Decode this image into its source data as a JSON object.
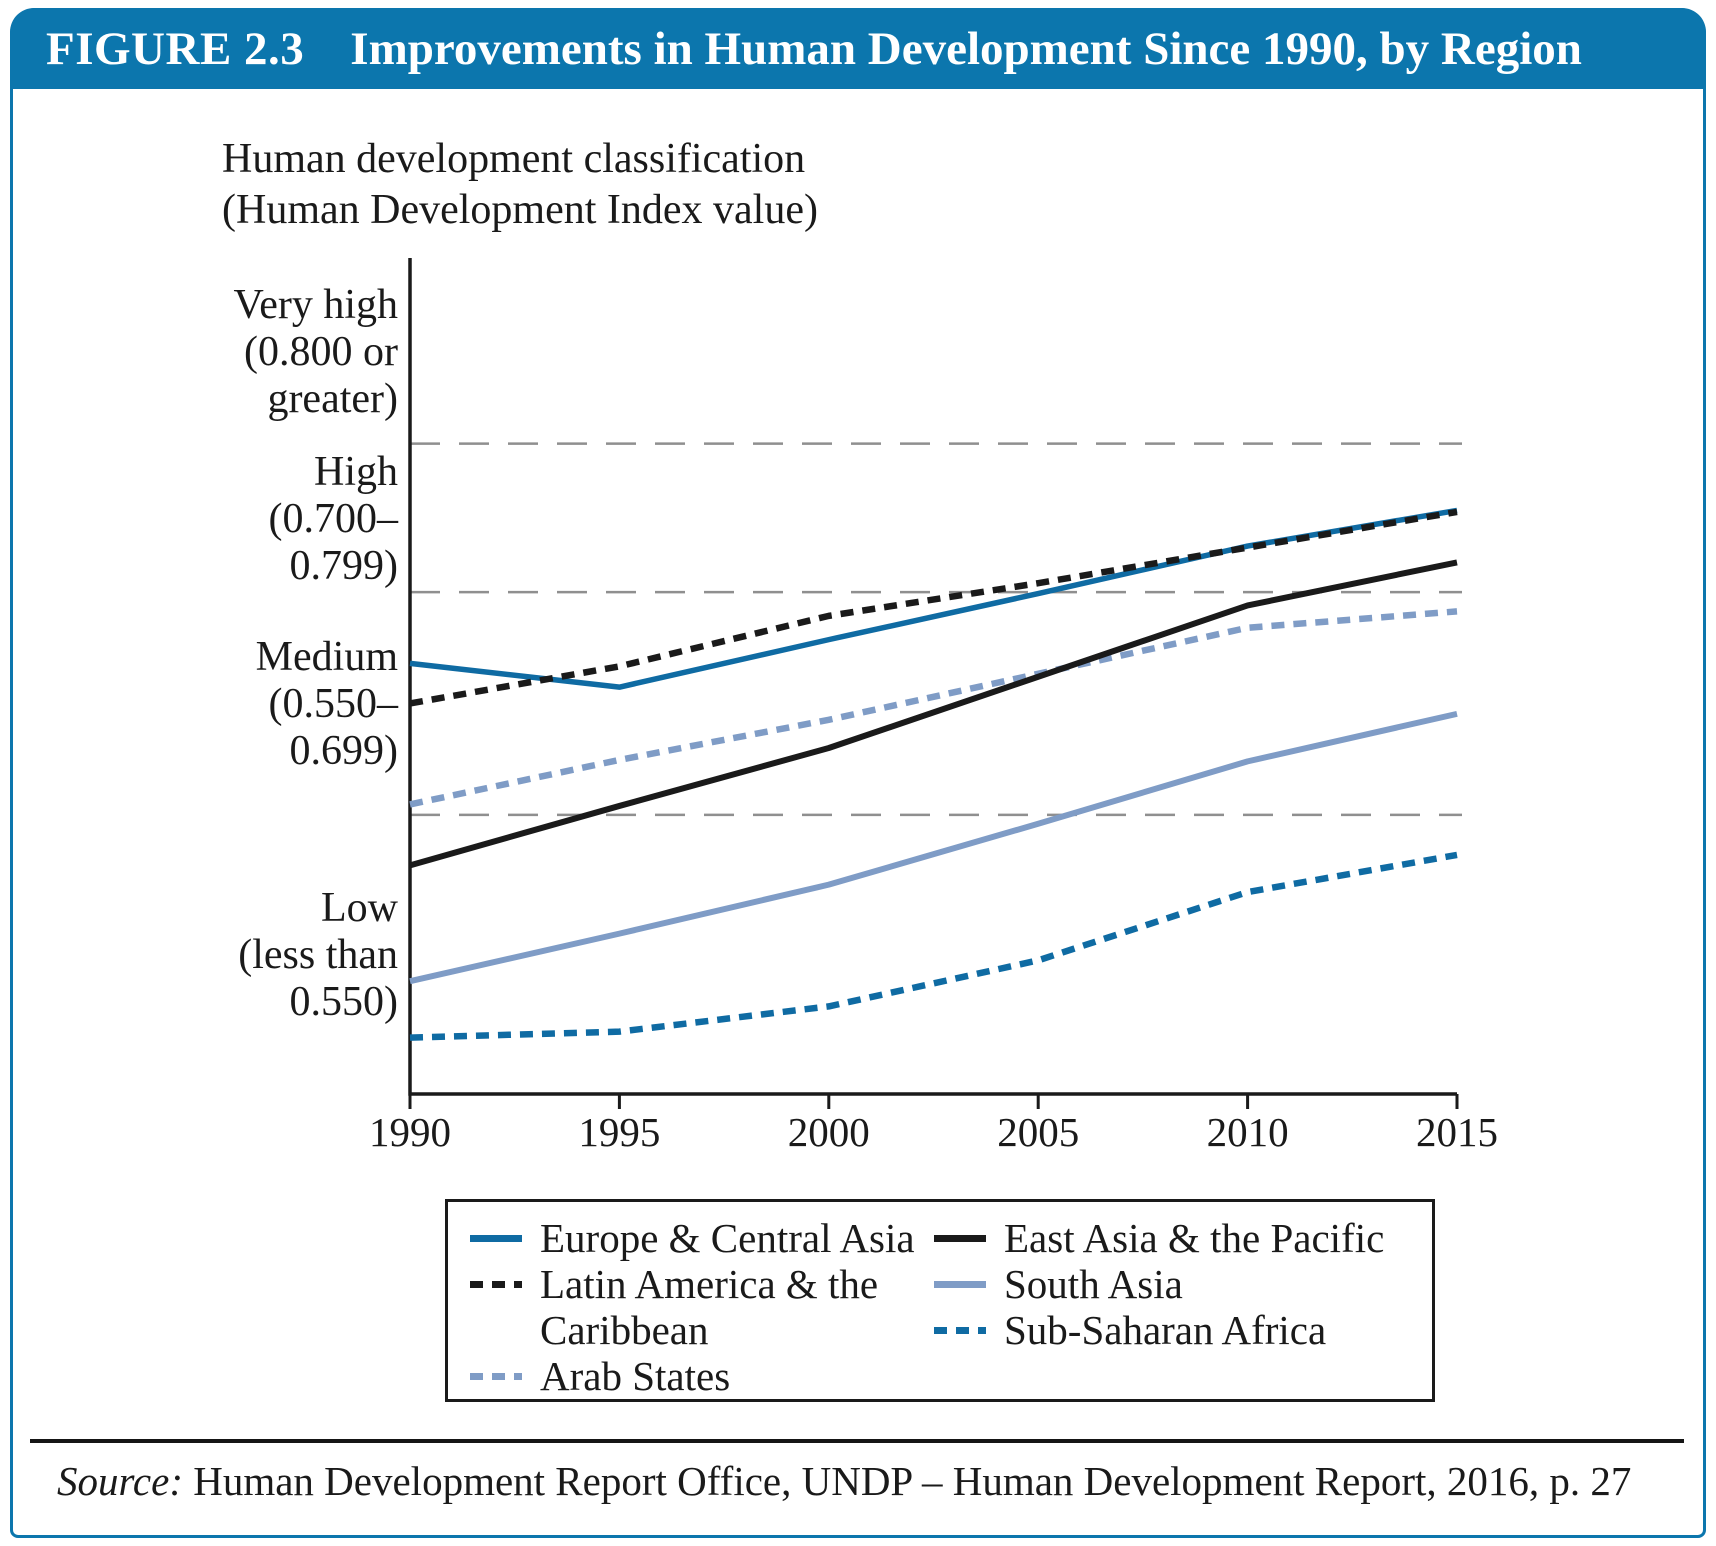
{
  "figure": {
    "label": "FIGURE 2.3",
    "title": "Improvements in Human Development Since 1990, by Region"
  },
  "chart": {
    "axis_title_line1": "Human development classification",
    "axis_title_line2": "(Human Development Index value)",
    "y_bands": [
      {
        "lines": [
          "Very high",
          "(0.800 or",
          "greater)"
        ]
      },
      {
        "lines": [
          "High",
          "(0.700–",
          "0.799)"
        ]
      },
      {
        "lines": [
          "Medium",
          "(0.550–",
          "0.699)"
        ]
      },
      {
        "lines": [
          "Low",
          "(less than",
          "0.550)"
        ]
      }
    ]
  },
  "chart_data": {
    "type": "line",
    "title": "Improvements in Human Development Since 1990, by Region",
    "xlabel": "",
    "ylabel": "Human development classification (Human Development Index value)",
    "x": [
      1990,
      1995,
      2000,
      2005,
      2010,
      2015
    ],
    "x_tick_labels": [
      "1990",
      "1995",
      "2000",
      "2005",
      "2010",
      "2015"
    ],
    "xlim": [
      1990,
      2015
    ],
    "ylim": [
      0.362,
      0.925
    ],
    "grid": "horizontal dashed gray lines at HDI classification boundaries",
    "classification_boundaries": [
      0.8,
      0.7,
      0.55
    ],
    "classification_labels": [
      "Very high (0.800 or greater)",
      "High (0.700–0.799)",
      "Medium (0.550–0.699)",
      "Low (less than 0.550)"
    ],
    "legend_position": "below",
    "colors": {
      "accent_blue": "#0c76ad",
      "line_blue": "#0f6ba3",
      "line_black": "#1a1a1a",
      "line_slate_blue": "#7f9cc6",
      "gridline_gray": "#8f8f8f"
    },
    "series": [
      {
        "name": "Europe & Central Asia",
        "color": "#0f6ba3",
        "dash": "solid",
        "values": [
          0.652,
          0.636,
          0.668,
          0.699,
          0.731,
          0.755
        ]
      },
      {
        "name": "Latin America & the Caribbean",
        "color": "#1a1a1a",
        "dash": "dashed",
        "values": [
          0.625,
          0.65,
          0.684,
          0.706,
          0.73,
          0.754
        ]
      },
      {
        "name": "Arab States",
        "color": "#7f9cc6",
        "dash": "dashed",
        "values": [
          0.557,
          0.587,
          0.614,
          0.645,
          0.676,
          0.687
        ]
      },
      {
        "name": "East Asia & the Pacific",
        "color": "#1a1a1a",
        "dash": "solid",
        "values": [
          0.516,
          0.556,
          0.595,
          0.643,
          0.691,
          0.72
        ]
      },
      {
        "name": "South Asia",
        "color": "#7f9cc6",
        "dash": "solid",
        "values": [
          0.438,
          0.47,
          0.503,
          0.544,
          0.586,
          0.618
        ]
      },
      {
        "name": "Sub-Saharan Africa",
        "color": "#0f6ba3",
        "dash": "dashed",
        "values": [
          0.4,
          0.404,
          0.421,
          0.452,
          0.498,
          0.523
        ]
      }
    ]
  },
  "source": {
    "prefix": "Source:",
    "text": " Human Development Report Office, UNDP – Human Development Report, 2016, p. 27"
  }
}
